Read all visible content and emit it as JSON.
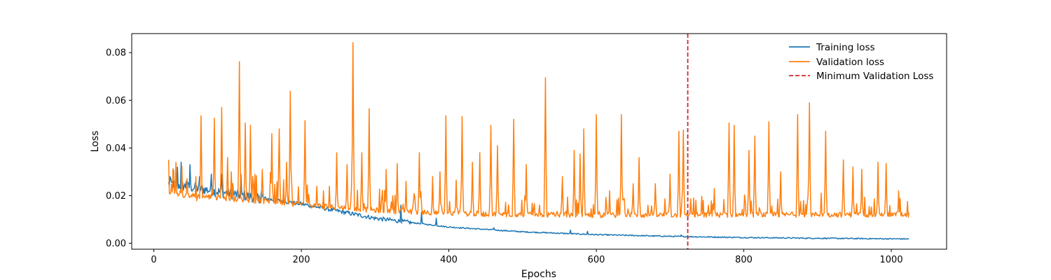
{
  "chart_data": {
    "type": "line",
    "title": "",
    "xlabel": "Epochs",
    "ylabel": "Loss",
    "xlim": [
      -30,
      1075
    ],
    "ylim": [
      -0.0025,
      0.088
    ],
    "xticks": [
      0,
      200,
      400,
      600,
      800,
      1000
    ],
    "xtick_labels": [
      "0",
      "200",
      "400",
      "600",
      "800",
      "1000"
    ],
    "yticks": [
      0.0,
      0.02,
      0.04,
      0.06,
      0.08
    ],
    "ytick_labels": [
      "0.00",
      "0.02",
      "0.04",
      "0.06",
      "0.08"
    ],
    "grid": false,
    "legend_position": "top-right",
    "x_range": [
      20,
      1024
    ],
    "series": [
      {
        "name": "Training loss",
        "color": "#1f77b4",
        "style": "solid",
        "trend": [
          [
            20,
            0.025
          ],
          [
            100,
            0.021
          ],
          [
            200,
            0.0165
          ],
          [
            300,
            0.0105
          ],
          [
            400,
            0.0068
          ],
          [
            500,
            0.0048
          ],
          [
            600,
            0.0036
          ],
          [
            700,
            0.0029
          ],
          [
            800,
            0.0024
          ],
          [
            900,
            0.0021
          ],
          [
            1024,
            0.0018
          ]
        ],
        "spikes": [
          [
            22,
            0.028
          ],
          [
            32,
            0.032
          ],
          [
            37,
            0.034
          ],
          [
            44,
            0.026
          ],
          [
            49,
            0.033
          ],
          [
            62,
            0.028
          ],
          [
            78,
            0.029
          ],
          [
            92,
            0.029
          ],
          [
            107,
            0.025
          ],
          [
            118,
            0.029
          ],
          [
            146,
            0.022
          ],
          [
            335,
            0.016
          ],
          [
            363,
            0.013
          ],
          [
            383,
            0.0105
          ],
          [
            461,
            0.0065
          ],
          [
            565,
            0.0055
          ],
          [
            588,
            0.005
          ],
          [
            715,
            0.0035
          ]
        ]
      },
      {
        "name": "Validation loss",
        "color": "#ff7f0e",
        "style": "solid",
        "trend": [
          [
            20,
            0.0205
          ],
          [
            100,
            0.0185
          ],
          [
            200,
            0.016
          ],
          [
            300,
            0.0135
          ],
          [
            400,
            0.0122
          ],
          [
            500,
            0.0117
          ],
          [
            600,
            0.0114
          ],
          [
            700,
            0.0115
          ],
          [
            800,
            0.0116
          ],
          [
            900,
            0.0117
          ],
          [
            1024,
            0.0118
          ]
        ],
        "spikes": [
          [
            20,
            0.035
          ],
          [
            30,
            0.034
          ],
          [
            57,
            0.028
          ],
          [
            64,
            0.0535
          ],
          [
            82,
            0.0525
          ],
          [
            92,
            0.057
          ],
          [
            100,
            0.036
          ],
          [
            116,
            0.0762
          ],
          [
            124,
            0.0505
          ],
          [
            131,
            0.0495
          ],
          [
            147,
            0.031
          ],
          [
            160,
            0.046
          ],
          [
            170,
            0.048
          ],
          [
            180,
            0.034
          ],
          [
            185,
            0.0638
          ],
          [
            205,
            0.0515
          ],
          [
            230,
            0.022
          ],
          [
            248,
            0.038
          ],
          [
            262,
            0.033
          ],
          [
            270,
            0.0842
          ],
          [
            282,
            0.038
          ],
          [
            292,
            0.0565
          ],
          [
            315,
            0.031
          ],
          [
            330,
            0.0335
          ],
          [
            342,
            0.026
          ],
          [
            360,
            0.038
          ],
          [
            378,
            0.028
          ],
          [
            388,
            0.03
          ],
          [
            396,
            0.0535
          ],
          [
            410,
            0.0265
          ],
          [
            418,
            0.0532
          ],
          [
            432,
            0.034
          ],
          [
            442,
            0.038
          ],
          [
            457,
            0.0495
          ],
          [
            466,
            0.041
          ],
          [
            488,
            0.052
          ],
          [
            505,
            0.033
          ],
          [
            531,
            0.0695
          ],
          [
            554,
            0.028
          ],
          [
            570,
            0.039
          ],
          [
            578,
            0.0375
          ],
          [
            583,
            0.048
          ],
          [
            600,
            0.054
          ],
          [
            618,
            0.022
          ],
          [
            634,
            0.054
          ],
          [
            650,
            0.025
          ],
          [
            658,
            0.036
          ],
          [
            680,
            0.025
          ],
          [
            700,
            0.029
          ],
          [
            712,
            0.047
          ],
          [
            718,
            0.0475
          ],
          [
            732,
            0.019
          ],
          [
            745,
            0.018
          ],
          [
            760,
            0.023
          ],
          [
            780,
            0.0505
          ],
          [
            787,
            0.0495
          ],
          [
            807,
            0.039
          ],
          [
            815,
            0.045
          ],
          [
            834,
            0.051
          ],
          [
            850,
            0.03
          ],
          [
            873,
            0.054
          ],
          [
            889,
            0.059
          ],
          [
            905,
            0.021
          ],
          [
            911,
            0.047
          ],
          [
            935,
            0.035
          ],
          [
            948,
            0.032
          ],
          [
            960,
            0.031
          ],
          [
            982,
            0.034
          ],
          [
            993,
            0.0335
          ],
          [
            1010,
            0.022
          ],
          [
            1022,
            0.0175
          ]
        ]
      }
    ],
    "vlines": [
      {
        "name": "Minimum Validation Loss",
        "x": 724,
        "color": "#d62728",
        "style": "dashed"
      }
    ]
  }
}
